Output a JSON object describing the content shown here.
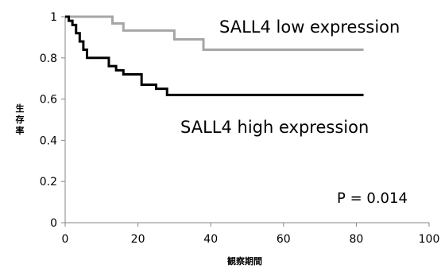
{
  "chart_data": {
    "type": "line",
    "xlabel": "観察期間",
    "ylabel": "生存率",
    "xlim": [
      0,
      100
    ],
    "ylim": [
      0,
      1
    ],
    "x_ticks": [
      0,
      20,
      40,
      60,
      80,
      100
    ],
    "y_ticks": [
      0,
      0.2,
      0.4,
      0.6,
      0.8,
      1
    ],
    "y_tick_labels": [
      "0",
      "0.2",
      "0.4",
      "0.6",
      "0.8",
      "1"
    ],
    "grid": false,
    "annotation": "P = 0.014",
    "series": [
      {
        "name": "SALL4 low expression",
        "color": "#a6a6a6",
        "step": true,
        "x": [
          0,
          13,
          16,
          30,
          38,
          82
        ],
        "y": [
          1.0,
          0.967,
          0.933,
          0.89,
          0.84,
          0.84
        ]
      },
      {
        "name": "SALL4 high expression",
        "color": "#000000",
        "step": true,
        "x": [
          0,
          1,
          2,
          3,
          4,
          5,
          6,
          12,
          14,
          16,
          21,
          25,
          28,
          82
        ],
        "y": [
          1.0,
          0.98,
          0.96,
          0.92,
          0.88,
          0.84,
          0.8,
          0.76,
          0.74,
          0.72,
          0.67,
          0.65,
          0.62,
          0.62
        ]
      }
    ]
  }
}
